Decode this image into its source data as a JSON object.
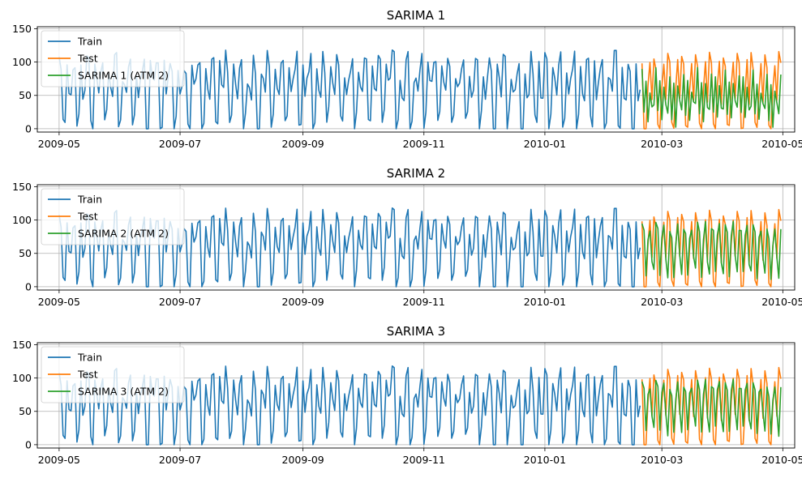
{
  "chart_data": [
    {
      "type": "line",
      "title": "SARIMA 1",
      "xlabel": "",
      "ylabel": "",
      "x_ticks": [
        "2009-05",
        "2009-07",
        "2009-09",
        "2009-11",
        "2010-01",
        "2010-03",
        "2010-05"
      ],
      "y_ticks": [
        "0",
        "50",
        "100",
        "150"
      ],
      "x_range": [
        "2009-04-20",
        "2010-05-07"
      ],
      "ylim": [
        -5,
        153
      ],
      "grid": true,
      "legend_position": "upper-left",
      "series": [
        {
          "name": "Train",
          "color": "#1f77b4",
          "start": "2009-05-01",
          "end": "2010-02-18",
          "weekly_pattern": [
            60,
            100,
            100,
            5,
            15,
            85,
            60
          ],
          "amplitude_noise": 18
        },
        {
          "name": "Test",
          "color": "#ff7f0e",
          "start": "2010-02-19",
          "end": "2010-04-30",
          "weekly_pattern": [
            110,
            95,
            5,
            0,
            60,
            100,
            40
          ],
          "amplitude_noise": 6
        },
        {
          "name": "SARIMA 1 (ATM 2)",
          "color": "#2ca02c",
          "start": "2010-02-19",
          "end": "2010-04-30",
          "weekly_pattern": [
            30,
            85,
            20,
            70,
            10,
            60,
            35
          ],
          "amplitude_noise": 8
        }
      ]
    },
    {
      "type": "line",
      "title": "SARIMA 2",
      "xlabel": "",
      "ylabel": "",
      "x_ticks": [
        "2009-05",
        "2009-07",
        "2009-09",
        "2009-11",
        "2010-01",
        "2010-03",
        "2010-05"
      ],
      "y_ticks": [
        "0",
        "50",
        "100",
        "150"
      ],
      "x_range": [
        "2009-04-20",
        "2010-05-07"
      ],
      "ylim": [
        -5,
        153
      ],
      "grid": true,
      "legend_position": "upper-left",
      "series": [
        {
          "name": "Train",
          "color": "#1f77b4",
          "start": "2009-05-01",
          "end": "2010-02-18",
          "weekly_pattern": [
            60,
            100,
            100,
            5,
            15,
            85,
            60
          ],
          "amplitude_noise": 18
        },
        {
          "name": "Test",
          "color": "#ff7f0e",
          "start": "2010-02-19",
          "end": "2010-04-30",
          "weekly_pattern": [
            110,
            95,
            5,
            0,
            60,
            100,
            40
          ],
          "amplitude_noise": 6
        },
        {
          "name": "SARIMA 2 (ATM 2)",
          "color": "#2ca02c",
          "start": "2010-02-19",
          "end": "2010-04-30",
          "weekly_pattern": [
            20,
            90,
            80,
            15,
            70,
            90,
            40
          ],
          "amplitude_noise": 8
        }
      ]
    },
    {
      "type": "line",
      "title": "SARIMA 3",
      "xlabel": "",
      "ylabel": "",
      "x_ticks": [
        "2009-05",
        "2009-07",
        "2009-09",
        "2009-11",
        "2010-01",
        "2010-03",
        "2010-05"
      ],
      "y_ticks": [
        "0",
        "50",
        "100",
        "150"
      ],
      "x_range": [
        "2009-04-20",
        "2010-05-07"
      ],
      "ylim": [
        -5,
        153
      ],
      "grid": true,
      "legend_position": "upper-left",
      "series": [
        {
          "name": "Train",
          "color": "#1f77b4",
          "start": "2009-05-01",
          "end": "2010-02-18",
          "weekly_pattern": [
            60,
            100,
            100,
            5,
            15,
            85,
            60
          ],
          "amplitude_noise": 18
        },
        {
          "name": "Test",
          "color": "#ff7f0e",
          "start": "2010-02-19",
          "end": "2010-04-30",
          "weekly_pattern": [
            110,
            95,
            5,
            0,
            60,
            100,
            40
          ],
          "amplitude_noise": 6
        },
        {
          "name": "SARIMA 3 (ATM 2)",
          "color": "#2ca02c",
          "start": "2010-02-19",
          "end": "2010-04-30",
          "weekly_pattern": [
            20,
            90,
            80,
            20,
            75,
            90,
            45
          ],
          "amplitude_noise": 8
        }
      ]
    }
  ]
}
